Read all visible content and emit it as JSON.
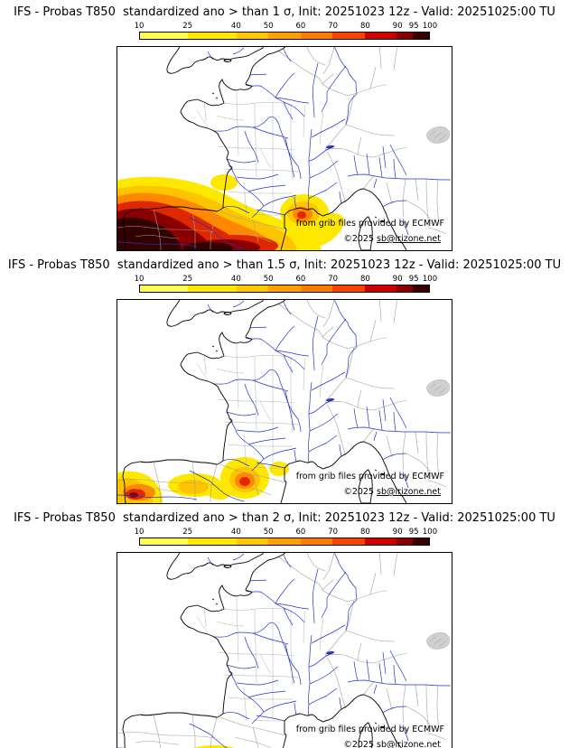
{
  "colorbar": {
    "min": 10,
    "max": 100,
    "ticks": [
      10,
      25,
      40,
      50,
      60,
      70,
      80,
      90,
      95,
      100
    ],
    "segments": [
      {
        "from": 10,
        "to": 25,
        "color": "#ffff54"
      },
      {
        "from": 25,
        "to": 40,
        "color": "#ffe800"
      },
      {
        "from": 40,
        "to": 50,
        "color": "#ffc800"
      },
      {
        "from": 50,
        "to": 60,
        "color": "#ffa000"
      },
      {
        "from": 60,
        "to": 70,
        "color": "#ff7800"
      },
      {
        "from": 70,
        "to": 80,
        "color": "#f84400"
      },
      {
        "from": 80,
        "to": 90,
        "color": "#d00000"
      },
      {
        "from": 90,
        "to": 95,
        "color": "#8a0000"
      },
      {
        "from": 95,
        "to": 100,
        "color": "#3a0000"
      }
    ]
  },
  "shading_palette": {
    "yellow": "#ffe800",
    "gold": "#ffc400",
    "orange": "#ff8800",
    "red": "#e02800",
    "dark_red": "#8a0000",
    "near_black": "#330000"
  },
  "map_colors": {
    "coastline": "#000000",
    "rivers": "#2233cc",
    "admin_borders": "#a0a0a0",
    "department_lines": "#b0b0b0"
  },
  "panels": [
    {
      "threshold_sigma": "1",
      "title": "IFS - Probas T850  standardized ano > than 1 σ, Init: 20251023 12z - Valid: 20251025:00 TU",
      "attribution": "from grib files provided by ECMWF",
      "copyright_prefix": "©2025 ",
      "copyright_email": "sb@irizone.net"
    },
    {
      "threshold_sigma": "1.5",
      "title": "IFS - Probas T850  standardized ano > than 1.5 σ, Init: 20251023 12z - Valid: 20251025:00 TU",
      "attribution": "from grib files provided by ECMWF",
      "copyright_prefix": "©2025 ",
      "copyright_email": "sb@irizone.net"
    },
    {
      "threshold_sigma": "2",
      "title": "IFS - Probas T850  standardized ano > than 2 σ, Init: 20251023 12z - Valid: 20251025:00 TU",
      "attribution": "from grib files provided by ECMWF",
      "copyright_prefix": "©2025 ",
      "copyright_email": "sb@irizone.net"
    }
  ]
}
